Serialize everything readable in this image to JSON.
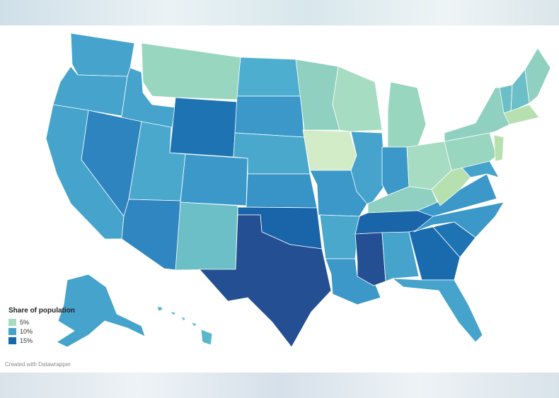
{
  "legend": {
    "title": "Share of population",
    "items": [
      {
        "label": "5%",
        "color": "#a6dcc2"
      },
      {
        "label": "10%",
        "color": "#45a2cc"
      },
      {
        "label": "15%",
        "color": "#1769ad"
      }
    ]
  },
  "credit": "Created with Datawrapper",
  "palette": {
    "very_light": "#d3ecc8",
    "light_green": "#b7e0b0",
    "mint": "#99d6bf",
    "teal_light": "#6fc1c4",
    "teal": "#4aaed0",
    "blue_mid": "#3a98c9",
    "blue": "#2f85c0",
    "blue_dark": "#1a6aae",
    "navy": "#245196",
    "navy_dark": "#21447f"
  },
  "states": [
    {
      "abbr": "WA",
      "color": "#45a3cc"
    },
    {
      "abbr": "OR",
      "color": "#45a3cc"
    },
    {
      "abbr": "CA",
      "color": "#45a3cc"
    },
    {
      "abbr": "ID",
      "color": "#45a3cc"
    },
    {
      "abbr": "NV",
      "color": "#2e84bf"
    },
    {
      "abbr": "UT",
      "color": "#4aa8cd"
    },
    {
      "abbr": "AZ",
      "color": "#2f86c0"
    },
    {
      "abbr": "MT",
      "color": "#99d6bf"
    },
    {
      "abbr": "WY",
      "color": "#1e74b3"
    },
    {
      "abbr": "CO",
      "color": "#3b98c9"
    },
    {
      "abbr": "NM",
      "color": "#6cbfc7"
    },
    {
      "abbr": "ND",
      "color": "#4eaed0"
    },
    {
      "abbr": "SD",
      "color": "#3b98c9"
    },
    {
      "abbr": "NE",
      "color": "#4aa8cd"
    },
    {
      "abbr": "KS",
      "color": "#3894c7"
    },
    {
      "abbr": "OK",
      "color": "#1a65aa"
    },
    {
      "abbr": "TX",
      "color": "#244f93"
    },
    {
      "abbr": "MN",
      "color": "#8fd0c1"
    },
    {
      "abbr": "IA",
      "color": "#d3ecc8"
    },
    {
      "abbr": "MO",
      "color": "#3b98c9"
    },
    {
      "abbr": "AR",
      "color": "#4aa8cd"
    },
    {
      "abbr": "LA",
      "color": "#3b98c9"
    },
    {
      "abbr": "WI",
      "color": "#a6dcc2"
    },
    {
      "abbr": "IL",
      "color": "#45a3cc"
    },
    {
      "abbr": "MS",
      "color": "#244f93"
    },
    {
      "abbr": "MI",
      "color": "#99d6bf"
    },
    {
      "abbr": "IN",
      "color": "#3b98c9"
    },
    {
      "abbr": "KY",
      "color": "#8fd0c1"
    },
    {
      "abbr": "TN",
      "color": "#1a65aa"
    },
    {
      "abbr": "AL",
      "color": "#45a3cc"
    },
    {
      "abbr": "OH",
      "color": "#a6dcc2"
    },
    {
      "abbr": "GA",
      "color": "#1a6aae"
    },
    {
      "abbr": "FL",
      "color": "#45a3cc"
    },
    {
      "abbr": "SC",
      "color": "#1e74b3"
    },
    {
      "abbr": "NC",
      "color": "#3b98c9"
    },
    {
      "abbr": "VA",
      "color": "#3b98c9"
    },
    {
      "abbr": "WV",
      "color": "#b7e0b0"
    },
    {
      "abbr": "PA",
      "color": "#99d6bf"
    },
    {
      "abbr": "NY",
      "color": "#8fd0c1"
    },
    {
      "abbr": "VT",
      "color": "#6cbfc7"
    },
    {
      "abbr": "NH",
      "color": "#6cbfc7"
    },
    {
      "abbr": "ME",
      "color": "#8fd0c1"
    },
    {
      "abbr": "MA",
      "color": "#b7e0b0"
    },
    {
      "abbr": "NJ",
      "color": "#b7e0b0"
    },
    {
      "abbr": "MD",
      "color": "#45a3cc"
    },
    {
      "abbr": "AK",
      "color": "#45a3cc"
    },
    {
      "abbr": "HI",
      "color": "#5bb6cb"
    }
  ]
}
